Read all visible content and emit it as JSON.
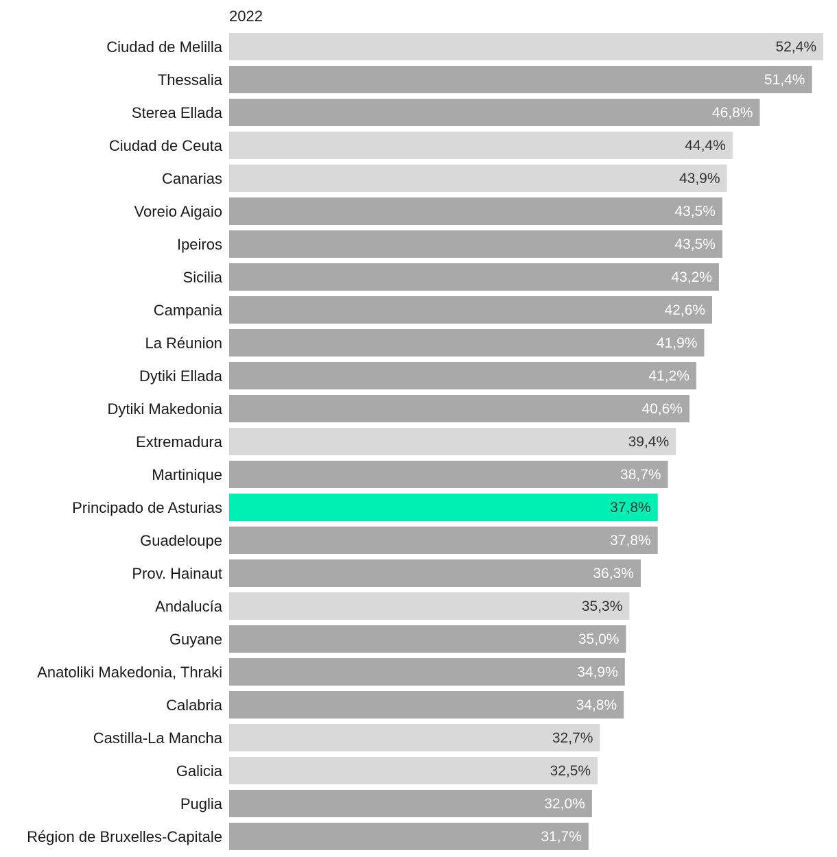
{
  "chart_data": {
    "type": "bar",
    "orientation": "horizontal",
    "column_title": "2022",
    "xlim": [
      0,
      52.4
    ],
    "grid": false,
    "categories": [
      "Ciudad de Melilla",
      "Thessalia",
      "Sterea Ellada",
      "Ciudad de Ceuta",
      "Canarias",
      "Voreio Aigaio",
      "Ipeiros",
      "Sicilia",
      "Campania",
      "La Réunion",
      "Dytiki Ellada",
      "Dytiki Makedonia",
      "Extremadura",
      "Martinique",
      "Principado de Asturias",
      "Guadeloupe",
      "Prov. Hainaut",
      "Andalucía",
      "Guyane",
      "Anatoliki Makedonia, Thraki",
      "Calabria",
      "Castilla-La Mancha",
      "Galicia",
      "Puglia",
      "Région de Bruxelles-Capitale"
    ],
    "values": [
      52.4,
      51.4,
      46.8,
      44.4,
      43.9,
      43.5,
      43.5,
      43.2,
      42.6,
      41.9,
      41.2,
      40.6,
      39.4,
      38.7,
      37.8,
      37.8,
      36.3,
      35.3,
      35.0,
      34.9,
      34.8,
      32.7,
      32.5,
      32.0,
      31.7
    ],
    "value_labels": [
      "52,4%",
      "51,4%",
      "46,8%",
      "44,4%",
      "43,9%",
      "43,5%",
      "43,5%",
      "43,2%",
      "42,6%",
      "41,9%",
      "41,2%",
      "40,6%",
      "39,4%",
      "38,7%",
      "37,8%",
      "37,8%",
      "36,3%",
      "35,3%",
      "35,0%",
      "34,9%",
      "34,8%",
      "32,7%",
      "32,5%",
      "32,0%",
      "31,7%"
    ],
    "bar_colors": [
      "#d9d9d9",
      "#a9a9a9",
      "#a9a9a9",
      "#d9d9d9",
      "#d9d9d9",
      "#a9a9a9",
      "#a9a9a9",
      "#a9a9a9",
      "#a9a9a9",
      "#a9a9a9",
      "#a9a9a9",
      "#a9a9a9",
      "#d9d9d9",
      "#a9a9a9",
      "#00f0b4",
      "#a9a9a9",
      "#a9a9a9",
      "#d9d9d9",
      "#a9a9a9",
      "#a9a9a9",
      "#a9a9a9",
      "#d9d9d9",
      "#d9d9d9",
      "#a9a9a9",
      "#a9a9a9"
    ],
    "label_colors": [
      "#333333",
      "#ffffff",
      "#ffffff",
      "#333333",
      "#333333",
      "#ffffff",
      "#ffffff",
      "#ffffff",
      "#ffffff",
      "#ffffff",
      "#ffffff",
      "#ffffff",
      "#333333",
      "#ffffff",
      "#333333",
      "#ffffff",
      "#ffffff",
      "#333333",
      "#ffffff",
      "#ffffff",
      "#ffffff",
      "#333333",
      "#333333",
      "#ffffff",
      "#ffffff"
    ]
  }
}
